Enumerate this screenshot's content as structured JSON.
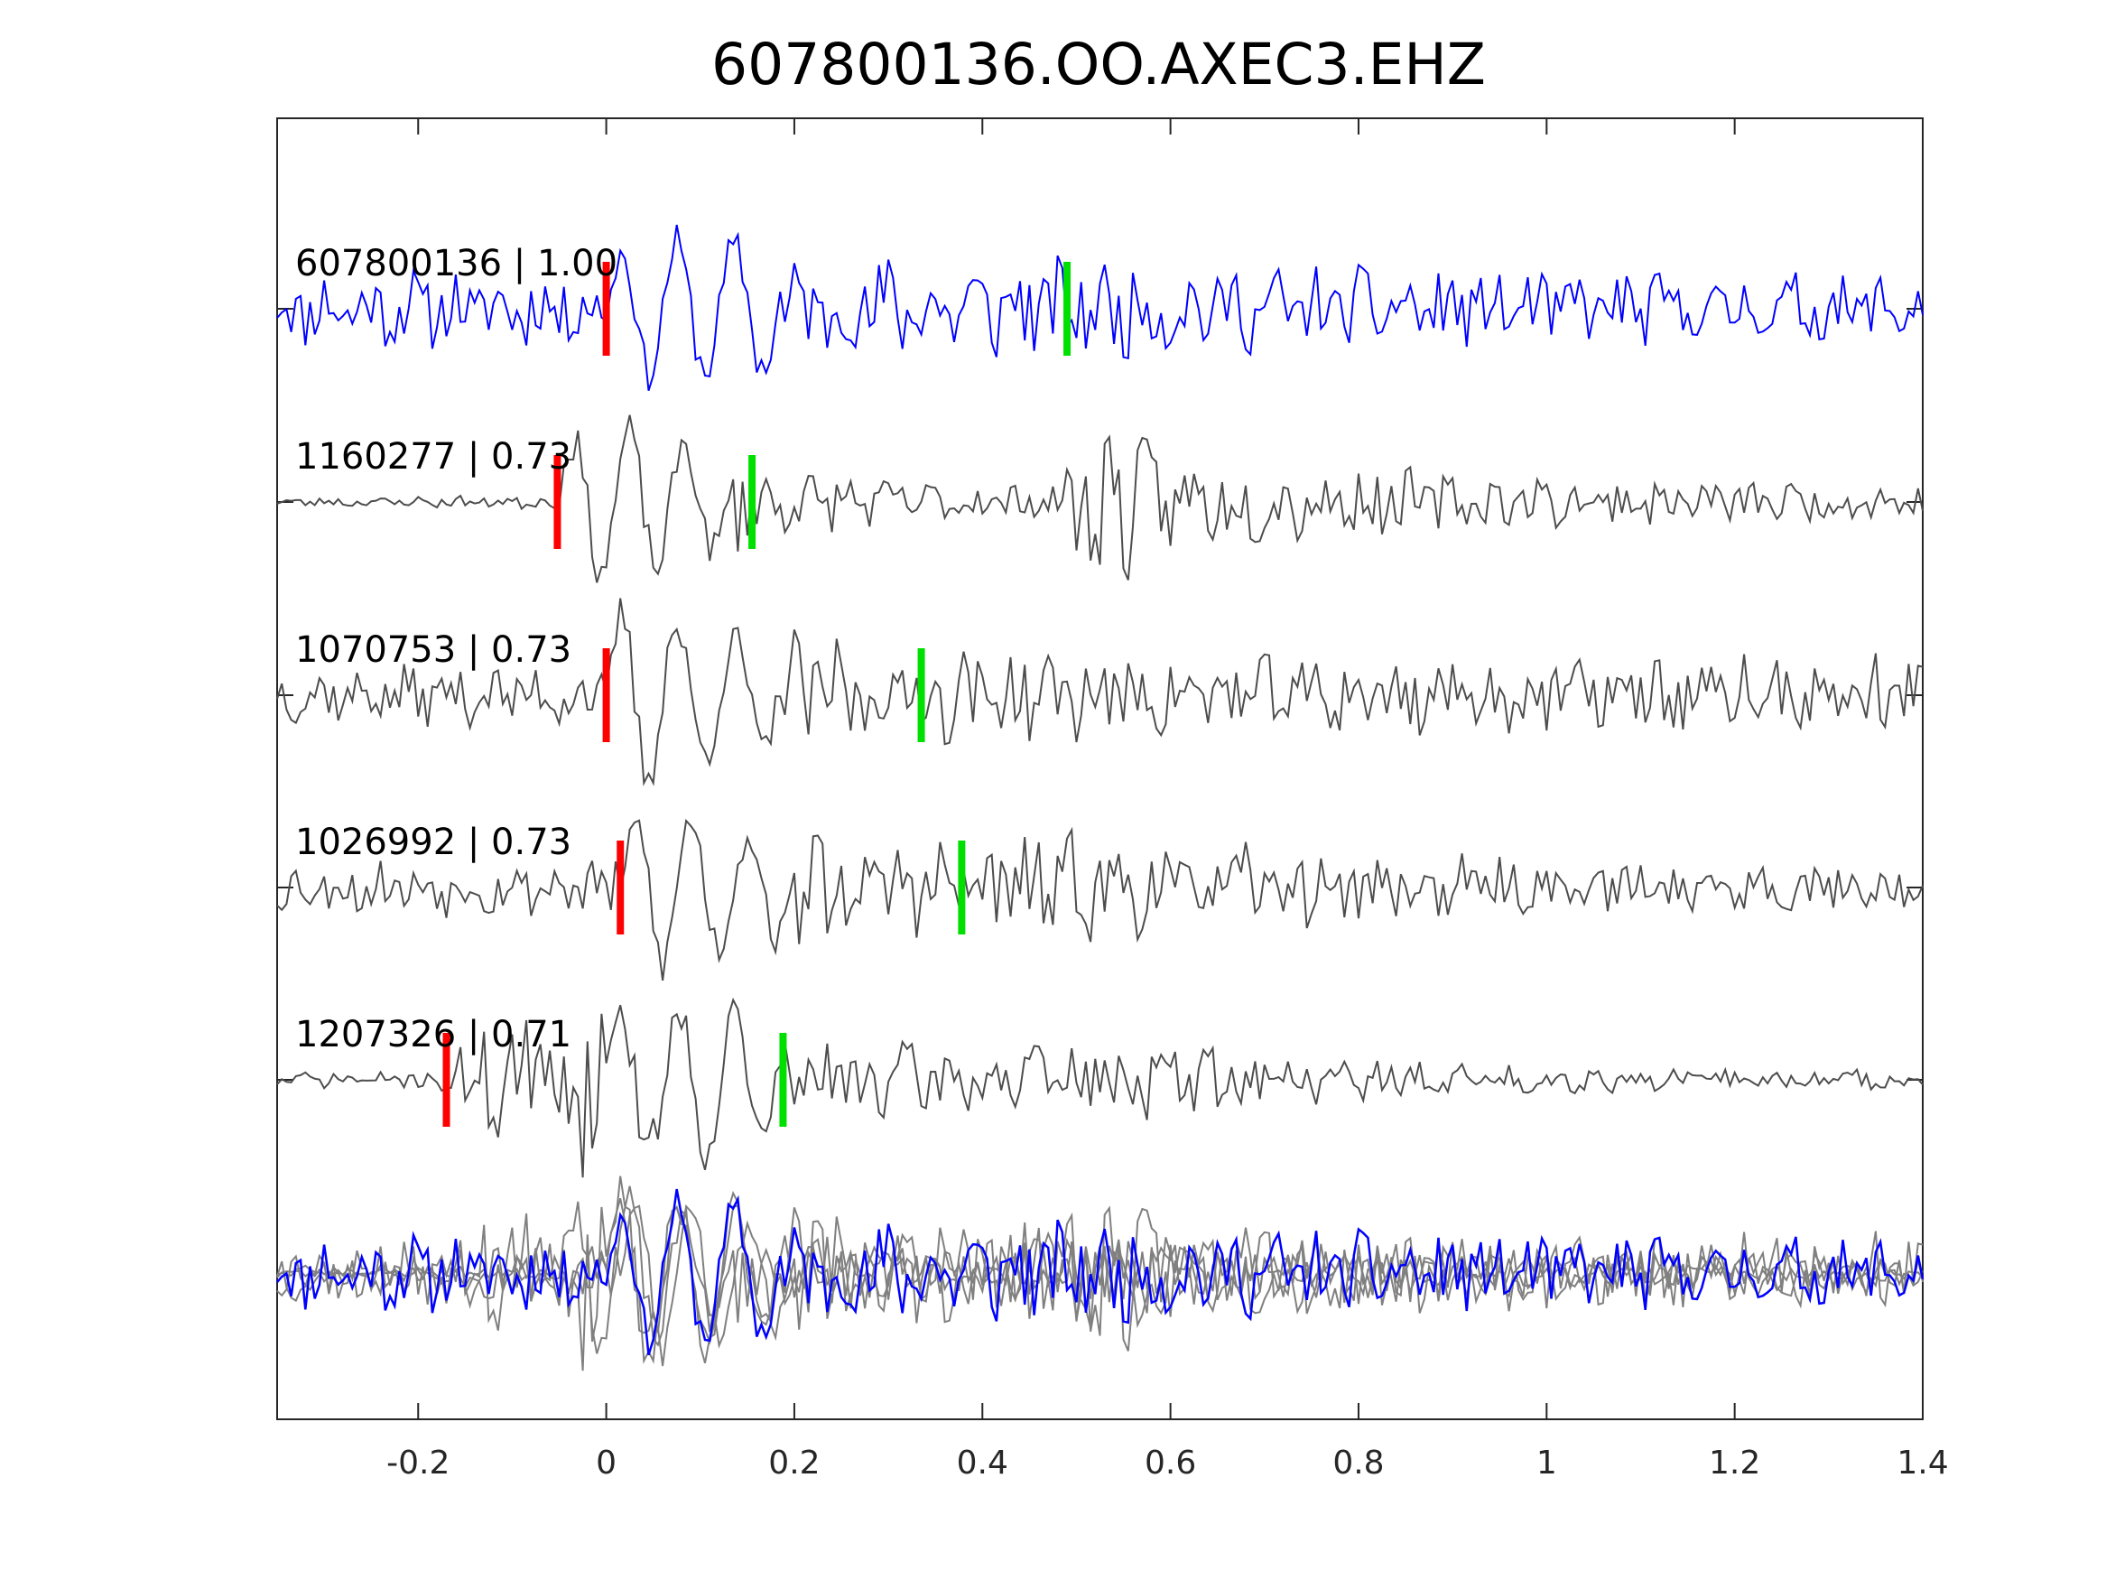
{
  "chart_data": {
    "type": "line",
    "title": "607800136.OO.AXEC3.EHZ",
    "xlabel": "",
    "ylabel": "",
    "xlim": [
      -0.35,
      1.4
    ],
    "xticks": [
      "-0.2",
      "0",
      "0.2",
      "0.4",
      "0.6",
      "0.8",
      "1",
      "1.2",
      "1.4"
    ],
    "xtick_values": [
      -0.2,
      0,
      0.2,
      0.4,
      0.6,
      0.8,
      1.0,
      1.2,
      1.4
    ],
    "grid": false,
    "legend": "none",
    "colors": {
      "template": "#0000ff",
      "match": "#4d4d4d",
      "overlay": "#808080",
      "p_pick": "#ff0000",
      "s_pick": "#00e000",
      "axis": "#262626"
    },
    "series": [
      {
        "name": "607800136 | 1.00",
        "event_id": "607800136",
        "cc": "1.00",
        "p_pick": 0.0,
        "s_pick": 0.49,
        "shift": 0.0,
        "role": "template",
        "seed": 11,
        "envelope": [
          [
            -0.35,
            0.42
          ],
          [
            -0.01,
            0.45
          ],
          [
            0.02,
            0.8
          ],
          [
            0.16,
            1.0
          ],
          [
            0.2,
            0.6
          ],
          [
            0.5,
            0.55
          ],
          [
            0.8,
            0.45
          ],
          [
            1.4,
            0.38
          ]
        ]
      },
      {
        "name": "1160277 | 0.73",
        "event_id": "1160277",
        "cc": "0.73",
        "p_pick": -0.052,
        "s_pick": 0.155,
        "shift": -0.052,
        "role": "match",
        "seed": 23,
        "envelope": [
          [
            -0.35,
            0.05
          ],
          [
            -0.06,
            0.08
          ],
          [
            -0.04,
            1.0
          ],
          [
            0.1,
            0.8
          ],
          [
            0.16,
            0.45
          ],
          [
            0.3,
            0.25
          ],
          [
            0.48,
            0.2
          ],
          [
            0.52,
            1.15
          ],
          [
            0.6,
            0.5
          ],
          [
            0.7,
            0.45
          ],
          [
            1.0,
            0.28
          ],
          [
            1.4,
            0.2
          ]
        ]
      },
      {
        "name": "1070753 | 0.73",
        "event_id": "1070753",
        "cc": "0.73",
        "p_pick": 0.0,
        "s_pick": 0.335,
        "shift": 0.0,
        "role": "match",
        "seed": 37,
        "envelope": [
          [
            -0.35,
            0.3
          ],
          [
            -0.01,
            0.35
          ],
          [
            0.02,
            1.15
          ],
          [
            0.15,
            0.8
          ],
          [
            0.3,
            0.55
          ],
          [
            0.45,
            0.5
          ],
          [
            0.7,
            0.45
          ],
          [
            1.4,
            0.45
          ]
        ]
      },
      {
        "name": "1026992 | 0.73",
        "event_id": "1026992",
        "cc": "0.73",
        "p_pick": 0.015,
        "s_pick": 0.378,
        "shift": 0.015,
        "role": "match",
        "seed": 53,
        "envelope": [
          [
            -0.35,
            0.3
          ],
          [
            0.0,
            0.32
          ],
          [
            0.04,
            1.0
          ],
          [
            0.15,
            0.85
          ],
          [
            0.3,
            0.55
          ],
          [
            0.5,
            0.6
          ],
          [
            0.7,
            0.45
          ],
          [
            1.0,
            0.3
          ],
          [
            1.4,
            0.25
          ]
        ]
      },
      {
        "name": "1207326 | 0.71",
        "event_id": "1207326",
        "cc": "0.71",
        "p_pick": -0.17,
        "s_pick": 0.188,
        "shift": 0.0,
        "role": "match",
        "seed": 71,
        "envelope": [
          [
            -0.35,
            0.08
          ],
          [
            -0.18,
            0.1
          ],
          [
            -0.16,
            0.55
          ],
          [
            0.02,
            1.15
          ],
          [
            0.15,
            0.85
          ],
          [
            0.2,
            0.5
          ],
          [
            0.4,
            0.35
          ],
          [
            0.6,
            0.45
          ],
          [
            0.75,
            0.25
          ],
          [
            1.0,
            0.15
          ],
          [
            1.4,
            0.1
          ]
        ]
      }
    ]
  }
}
